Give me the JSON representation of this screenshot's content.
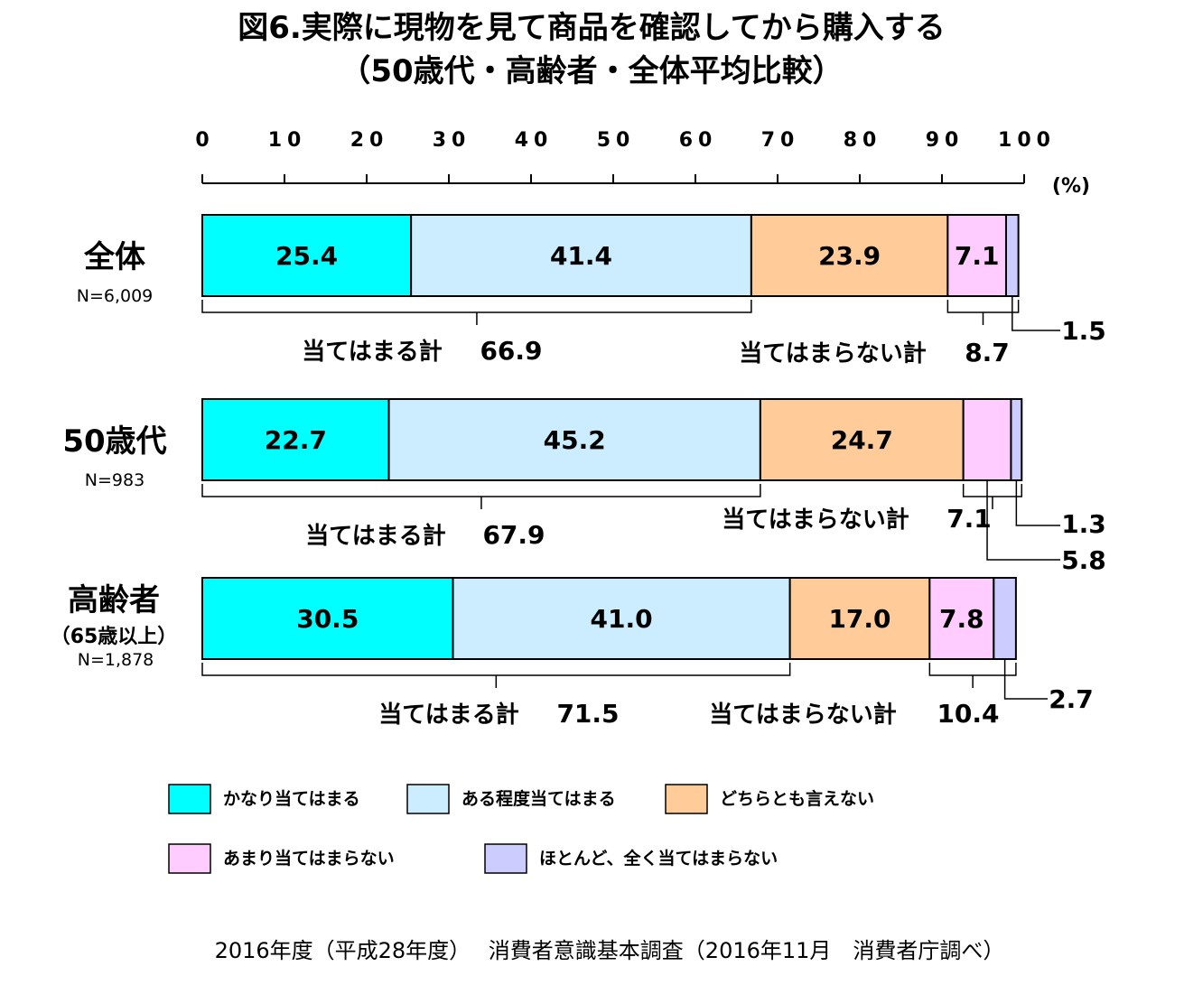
{
  "title_line1": "図6.実際に現物を見て商品を確認してから購入する",
  "title_line2": "（50歳代・高齢者・全体平均比較）",
  "source": "2016年度（平成28年度）　 消費者意識基本調査（2016年11月　消費者庁調べ）",
  "chart_data": {
    "type": "bar",
    "orientation": "horizontal",
    "stacked": true,
    "xlim": [
      0,
      100
    ],
    "x_ticks": [
      0,
      10,
      20,
      30,
      40,
      50,
      60,
      70,
      80,
      90,
      100
    ],
    "unit": "(%)",
    "series": [
      {
        "name": "かなり当てはまる",
        "color": "#00FFFF"
      },
      {
        "name": "ある程度当てはまる",
        "color": "#CCECFF"
      },
      {
        "name": "どちらとも言えない",
        "color": "#FFCC99"
      },
      {
        "name": "あまり当てはまらない",
        "color": "#FFCCFF"
      },
      {
        "name": "ほとんど、全く当てはまらない",
        "color": "#CCCCFF"
      }
    ],
    "rows": [
      {
        "label": "全体",
        "sublabel": "",
        "n": "N=6,009",
        "values": [
          25.4,
          41.4,
          23.9,
          7.1,
          1.5
        ],
        "inside_labels": [
          "25.4",
          "41.4",
          "23.9",
          "7.1",
          ""
        ],
        "outside_labels": [
          {
            "text": "1.5",
            "segment": 4
          }
        ],
        "sum_apply": {
          "label": "当てはまる計",
          "value": "66.9"
        },
        "sum_notapply": {
          "label": "当てはまらない計",
          "value": "8.7"
        }
      },
      {
        "label": "50歳代",
        "sublabel": "",
        "n": "N=983",
        "values": [
          22.7,
          45.2,
          24.7,
          5.8,
          1.3
        ],
        "inside_labels": [
          "22.7",
          "45.2",
          "24.7",
          "",
          ""
        ],
        "outside_labels": [
          {
            "text": "1.3",
            "segment": 4
          },
          {
            "text": "5.8",
            "segment": 3
          }
        ],
        "sum_apply": {
          "label": "当てはまる計",
          "value": "67.9"
        },
        "sum_notapply": {
          "label": "当てはまらない計",
          "value": "7.1"
        }
      },
      {
        "label": "高齢者",
        "sublabel": "（65歳以上）",
        "n": "N=1,878",
        "values": [
          30.5,
          41.0,
          17.0,
          7.8,
          2.7
        ],
        "inside_labels": [
          "30.5",
          "41.0",
          "17.0",
          "7.8",
          ""
        ],
        "outside_labels": [
          {
            "text": "2.7",
            "segment": 4
          }
        ],
        "sum_apply": {
          "label": "当てはまる計",
          "value": "71.5"
        },
        "sum_notapply": {
          "label": "当てはまらない計",
          "value": "10.4"
        }
      }
    ],
    "legend": [
      "かなり当てはまる",
      "ある程度当てはまる",
      "どちらとも言えない",
      "あまり当てはまらない",
      "ほとんど、全く当てはまらない"
    ],
    "legend_position": "bottom"
  }
}
